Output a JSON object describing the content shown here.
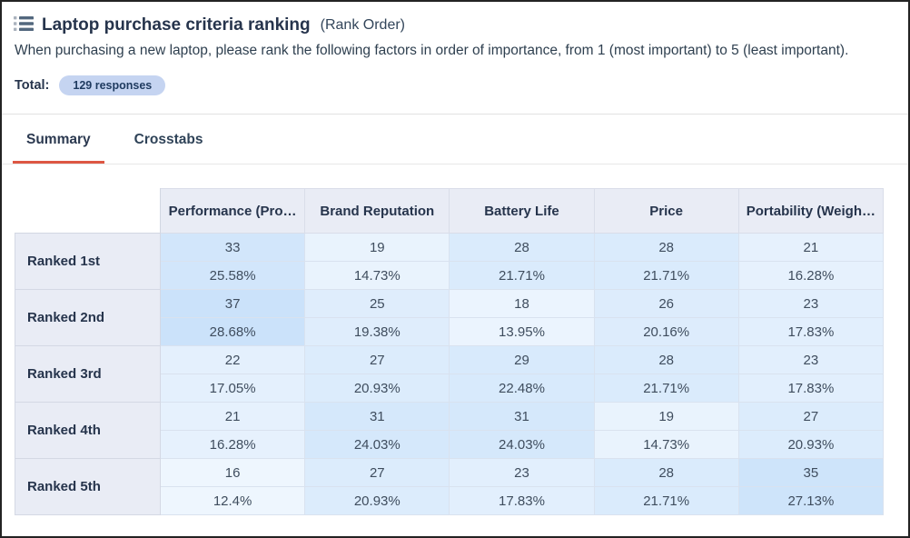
{
  "header": {
    "title": "Laptop purchase criteria ranking",
    "title_suffix": "(Rank Order)",
    "question": "When purchasing a new laptop, please rank the following factors in order of importance, from 1 (most important) to 5 (least important).",
    "total_label": "Total:",
    "total_badge": "129 responses"
  },
  "tabs": [
    {
      "label": "Summary",
      "active": true
    },
    {
      "label": "Crosstabs",
      "active": false
    }
  ],
  "colors": {
    "tab_underline_accent": "#dd5743",
    "badge_bg": "#c5d4f1",
    "header_cell_bg": "#e9ecf5",
    "row_label_bg": "#e9ecf5"
  },
  "chart_data": {
    "type": "table",
    "title": "Laptop purchase criteria ranking (Rank Order)",
    "total_responses": 129,
    "columns": [
      "Performance (Pro…",
      "Brand Reputation",
      "Battery Life",
      "Price",
      "Portability (Weigh…"
    ],
    "rows": [
      {
        "label": "Ranked 1st",
        "counts": [
          33,
          19,
          28,
          28,
          21
        ],
        "percents": [
          "25.58%",
          "14.73%",
          "21.71%",
          "21.71%",
          "16.28%"
        ]
      },
      {
        "label": "Ranked 2nd",
        "counts": [
          37,
          25,
          18,
          26,
          23
        ],
        "percents": [
          "28.68%",
          "19.38%",
          "13.95%",
          "20.16%",
          "17.83%"
        ]
      },
      {
        "label": "Ranked 3rd",
        "counts": [
          22,
          27,
          29,
          28,
          23
        ],
        "percents": [
          "17.05%",
          "20.93%",
          "22.48%",
          "21.71%",
          "17.83%"
        ]
      },
      {
        "label": "Ranked 4th",
        "counts": [
          21,
          31,
          31,
          19,
          27
        ],
        "percents": [
          "16.28%",
          "24.03%",
          "24.03%",
          "14.73%",
          "20.93%"
        ]
      },
      {
        "label": "Ranked 5th",
        "counts": [
          16,
          27,
          23,
          28,
          35
        ],
        "percents": [
          "12.4%",
          "20.93%",
          "17.83%",
          "21.71%",
          "27.13%"
        ]
      }
    ],
    "heatmap": {
      "min_pct": 12.4,
      "max_pct": 28.68,
      "min_color": "#eef6fe",
      "max_color": "#cbe2fa"
    }
  }
}
